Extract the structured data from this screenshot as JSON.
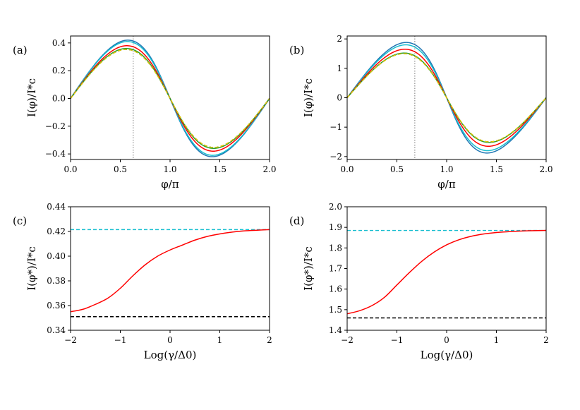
{
  "chart_data": [
    {
      "panel_label": "(a)",
      "type": "line",
      "xlabel": "φ/π",
      "ylabel": "I(φ)/I*c",
      "xlim": [
        0.0,
        2.0
      ],
      "ylim": [
        -0.44,
        0.45
      ],
      "xticks": [
        "0.0",
        "0.5",
        "1.0",
        "1.5",
        "2.0"
      ],
      "yticks": [
        "−0.4",
        "−0.2",
        "0.0",
        "0.2",
        "0.4"
      ],
      "xtick_values": [
        0,
        0.5,
        1.0,
        1.5,
        2.0
      ],
      "ytick_values": [
        -0.4,
        -0.2,
        0,
        0.2,
        0.4
      ],
      "vline_x": 0.63,
      "series": [
        {
          "name": "blue",
          "color": "#1f77b4",
          "dash": "",
          "amplitude": 0.42,
          "skew": 0.62
        },
        {
          "name": "cyan",
          "color": "#17becf",
          "dash": "",
          "amplitude": 0.41,
          "skew": 0.6
        },
        {
          "name": "red",
          "color": "#ff0000",
          "dash": "",
          "amplitude": 0.38,
          "skew": 0.57
        },
        {
          "name": "green",
          "color": "#2ca02c",
          "dash": "",
          "amplitude": 0.36,
          "skew": 0.54
        },
        {
          "name": "black-dashed",
          "color": "#000000",
          "dash": "5,3",
          "amplitude": 0.353,
          "skew": 0.53
        },
        {
          "name": "yellow-dashed",
          "color": "#e6d000",
          "dash": "5,3",
          "amplitude": 0.353,
          "skew": 0.53
        }
      ]
    },
    {
      "panel_label": "(b)",
      "type": "line",
      "xlabel": "φ/π",
      "ylabel": "I(φ)/I*c",
      "xlim": [
        0.0,
        2.0
      ],
      "ylim": [
        -2.1,
        2.1
      ],
      "xticks": [
        "0.0",
        "0.5",
        "1.0",
        "1.5",
        "2.0"
      ],
      "yticks": [
        "−2",
        "−1",
        "0",
        "1",
        "2"
      ],
      "xtick_values": [
        0,
        0.5,
        1.0,
        1.5,
        2.0
      ],
      "ytick_values": [
        -2,
        -1,
        0,
        1,
        2
      ],
      "vline_x": 0.68,
      "series": [
        {
          "name": "blue",
          "color": "#1f77b4",
          "dash": "",
          "amplitude": 1.88,
          "skew": 0.7
        },
        {
          "name": "cyan",
          "color": "#17becf",
          "dash": "",
          "amplitude": 1.8,
          "skew": 0.68
        },
        {
          "name": "red",
          "color": "#ff0000",
          "dash": "",
          "amplitude": 1.65,
          "skew": 0.64
        },
        {
          "name": "green",
          "color": "#2ca02c",
          "dash": "",
          "amplitude": 1.52,
          "skew": 0.6
        },
        {
          "name": "black-dashed",
          "color": "#000000",
          "dash": "5,3",
          "amplitude": 1.5,
          "skew": 0.59
        },
        {
          "name": "yellow-dashed",
          "color": "#e6d000",
          "dash": "5,3",
          "amplitude": 1.5,
          "skew": 0.59
        }
      ]
    },
    {
      "panel_label": "(c)",
      "type": "line",
      "xlabel": "Log(γ/Δ0)",
      "ylabel": "I(φ*)/I*c",
      "xlim": [
        -2,
        2
      ],
      "ylim": [
        0.34,
        0.44
      ],
      "xticks": [
        "−2",
        "−1",
        "0",
        "1",
        "2"
      ],
      "yticks": [
        "0.34",
        "0.36",
        "0.38",
        "0.40",
        "0.42",
        "0.44"
      ],
      "xtick_values": [
        -2,
        -1,
        0,
        1,
        2
      ],
      "ytick_values": [
        0.34,
        0.36,
        0.38,
        0.4,
        0.42,
        0.44
      ],
      "hlines": [
        {
          "y": 0.4215,
          "color": "#17becf"
        },
        {
          "y": 0.351,
          "color": "#000000"
        }
      ],
      "series": [
        {
          "name": "red",
          "color": "#ff0000",
          "x": [
            -2.0,
            -1.75,
            -1.5,
            -1.25,
            -1.0,
            -0.75,
            -0.5,
            -0.25,
            0.0,
            0.25,
            0.5,
            0.75,
            1.0,
            1.25,
            1.5,
            1.75,
            2.0
          ],
          "values": [
            0.355,
            0.357,
            0.361,
            0.366,
            0.374,
            0.384,
            0.393,
            0.4,
            0.405,
            0.409,
            0.413,
            0.416,
            0.418,
            0.4195,
            0.4205,
            0.421,
            0.4215
          ]
        }
      ]
    },
    {
      "panel_label": "(d)",
      "type": "line",
      "xlabel": "Log(γ/Δ0)",
      "ylabel": "I(φ*)/I*c",
      "xlim": [
        -2,
        2
      ],
      "ylim": [
        1.4,
        2.0
      ],
      "xticks": [
        "−2",
        "−1",
        "0",
        "1",
        "2"
      ],
      "yticks": [
        "1.4",
        "1.5",
        "1.6",
        "1.7",
        "1.8",
        "1.9",
        "2.0"
      ],
      "xtick_values": [
        -2,
        -1,
        0,
        1,
        2
      ],
      "ytick_values": [
        1.4,
        1.5,
        1.6,
        1.7,
        1.8,
        1.9,
        2.0
      ],
      "hlines": [
        {
          "y": 1.885,
          "color": "#17becf"
        },
        {
          "y": 1.46,
          "color": "#000000"
        }
      ],
      "series": [
        {
          "name": "red",
          "color": "#ff0000",
          "x": [
            -2.0,
            -1.75,
            -1.5,
            -1.25,
            -1.0,
            -0.75,
            -0.5,
            -0.25,
            0.0,
            0.25,
            0.5,
            0.75,
            1.0,
            1.25,
            1.5,
            1.75,
            2.0
          ],
          "values": [
            1.48,
            1.495,
            1.52,
            1.56,
            1.62,
            1.68,
            1.735,
            1.78,
            1.815,
            1.84,
            1.857,
            1.868,
            1.875,
            1.879,
            1.882,
            1.884,
            1.885
          ]
        }
      ]
    }
  ]
}
